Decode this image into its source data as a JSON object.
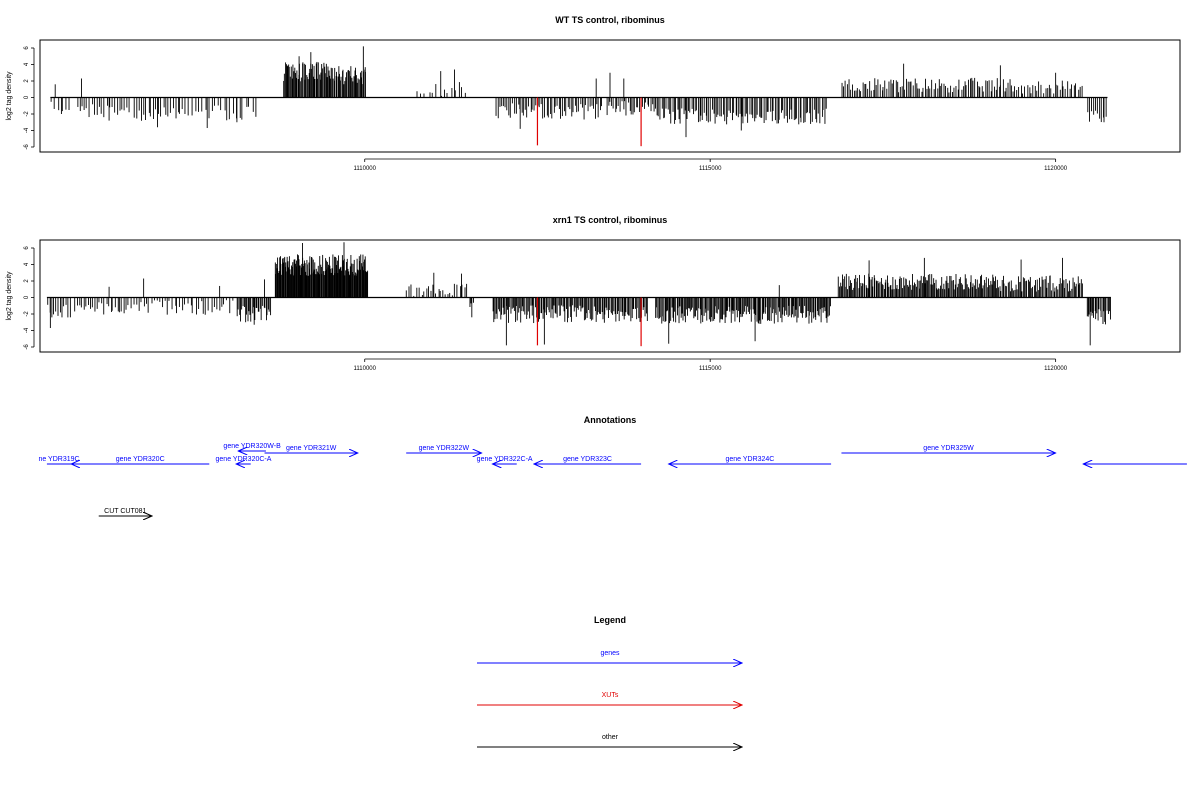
{
  "chart_data": [
    {
      "type": "bar",
      "title": "WT TS control, ribominus",
      "xlabel": "",
      "ylabel": "log2 tag density",
      "xlim": [
        1105300,
        1121800
      ],
      "ylim": [
        -6,
        7
      ],
      "xticks": [
        {
          "value": 1110000,
          "label": "1110000"
        },
        {
          "value": 1115000,
          "label": "1115000"
        },
        {
          "value": 1120000,
          "label": "1120000"
        }
      ],
      "yticks": [
        {
          "value": 6,
          "label": "6"
        },
        {
          "value": 4,
          "label": "4"
        },
        {
          "value": 2,
          "label": "2"
        },
        {
          "value": 0,
          "label": "0"
        },
        {
          "value": -2,
          "label": "-2"
        },
        {
          "value": -4,
          "label": "-4"
        },
        {
          "value": -6,
          "label": "-6"
        }
      ],
      "colors": {
        "bars": "#000000",
        "xut": "#e00000",
        "baseline": "#000000"
      },
      "segments": [
        {
          "start": 1105450,
          "end": 1105750,
          "baseline": -1.0,
          "dev": 0.8,
          "n": 6,
          "spikes": [
            [
              1105520,
              1.6
            ],
            [
              1105610,
              -2.0
            ]
          ]
        },
        {
          "start": 1105820,
          "end": 1106620,
          "baseline": -1.6,
          "dev": 0.9,
          "n": 22,
          "spikes": [
            [
              1105900,
              2.3
            ],
            [
              1106300,
              -2.8
            ]
          ]
        },
        {
          "start": 1106650,
          "end": 1107350,
          "baseline": -1.9,
          "dev": 0.9,
          "n": 20,
          "spikes": [
            [
              1107000,
              -3.6
            ]
          ]
        },
        {
          "start": 1107350,
          "end": 1108450,
          "baseline": -1.7,
          "dev": 1.0,
          "n": 24,
          "spikes": [
            [
              1107720,
              -3.7
            ],
            [
              1108150,
              -3.0
            ]
          ]
        },
        {
          "start": 1108820,
          "end": 1109500,
          "baseline": 3.0,
          "dev": 1.2,
          "n": 55,
          "spikes": [
            [
              1109220,
              5.5
            ],
            [
              1109050,
              5.0
            ]
          ]
        },
        {
          "start": 1109500,
          "end": 1110020,
          "baseline": 2.6,
          "dev": 1.1,
          "n": 40,
          "spikes": [
            [
              1109980,
              6.2
            ],
            [
              1110010,
              3.1
            ]
          ]
        },
        {
          "start": 1110750,
          "end": 1111500,
          "baseline": 0.9,
          "dev": 0.9,
          "n": 14,
          "spikes": [
            [
              1111100,
              3.2
            ],
            [
              1111300,
              3.4
            ]
          ]
        },
        {
          "start": 1111900,
          "end": 1113450,
          "baseline": -1.6,
          "dev": 1.0,
          "n": 60,
          "spikes": [
            [
              1112250,
              -3.8
            ],
            [
              1113350,
              2.3
            ]
          ]
        },
        {
          "start": 1113500,
          "end": 1114200,
          "baseline": -1.2,
          "dev": 0.9,
          "n": 30,
          "spikes": [
            [
              1113550,
              3.0
            ],
            [
              1113750,
              2.3
            ]
          ]
        },
        {
          "start": 1114200,
          "end": 1116700,
          "baseline": -2.2,
          "dev": 1.0,
          "n": 110,
          "spikes": [
            [
              1114650,
              -4.8
            ],
            [
              1115450,
              -4.0
            ]
          ]
        },
        {
          "start": 1116900,
          "end": 1119400,
          "baseline": 1.4,
          "dev": 0.9,
          "n": 100,
          "spikes": [
            [
              1117800,
              4.1
            ],
            [
              1119200,
              3.9
            ]
          ]
        },
        {
          "start": 1119400,
          "end": 1120400,
          "baseline": 1.2,
          "dev": 0.8,
          "n": 34,
          "spikes": [
            [
              1120000,
              3.0
            ]
          ]
        },
        {
          "start": 1120450,
          "end": 1120750,
          "baseline": -2.2,
          "dev": 0.8,
          "n": 10,
          "spikes": [
            [
              1120700,
              -3.0
            ]
          ]
        }
      ],
      "xut_marks": [
        {
          "x": 1112500,
          "y": -5.8
        },
        {
          "x": 1114000,
          "y": -5.9
        }
      ]
    },
    {
      "type": "bar",
      "title": "xrn1 TS control, ribominus",
      "xlabel": "",
      "ylabel": "log2 tag density",
      "xlim": [
        1105300,
        1121800
      ],
      "ylim": [
        -6,
        7
      ],
      "xticks": [
        {
          "value": 1110000,
          "label": "1110000"
        },
        {
          "value": 1115000,
          "label": "1115000"
        },
        {
          "value": 1120000,
          "label": "1120000"
        }
      ],
      "yticks": [
        {
          "value": 6,
          "label": "6"
        },
        {
          "value": 4,
          "label": "4"
        },
        {
          "value": 2,
          "label": "2"
        },
        {
          "value": 0,
          "label": "0"
        },
        {
          "value": -2,
          "label": "-2"
        },
        {
          "value": -4,
          "label": "-4"
        },
        {
          "value": -6,
          "label": "-6"
        }
      ],
      "colors": {
        "bars": "#000000",
        "xut": "#e00000",
        "baseline": "#000000"
      },
      "segments": [
        {
          "start": 1105400,
          "end": 1105750,
          "baseline": -1.6,
          "dev": 0.9,
          "n": 12,
          "spikes": [
            [
              1105450,
              -3.7
            ]
          ]
        },
        {
          "start": 1105800,
          "end": 1106600,
          "baseline": -1.3,
          "dev": 0.8,
          "n": 25,
          "spikes": [
            [
              1106300,
              1.3
            ]
          ]
        },
        {
          "start": 1106600,
          "end": 1108100,
          "baseline": -1.1,
          "dev": 0.9,
          "n": 40,
          "spikes": [
            [
              1106800,
              2.3
            ],
            [
              1107900,
              1.4
            ]
          ]
        },
        {
          "start": 1108150,
          "end": 1108650,
          "baseline": -1.9,
          "dev": 1.0,
          "n": 30,
          "spikes": [
            [
              1108550,
              2.2
            ],
            [
              1108400,
              -3.3
            ]
          ]
        },
        {
          "start": 1108700,
          "end": 1110050,
          "baseline": 3.8,
          "dev": 1.3,
          "n": 150,
          "spikes": [
            [
              1109100,
              6.6
            ],
            [
              1109700,
              6.7
            ]
          ]
        },
        {
          "start": 1110600,
          "end": 1111500,
          "baseline": 0.9,
          "dev": 0.8,
          "n": 26,
          "spikes": [
            [
              1111000,
              3.0
            ],
            [
              1111400,
              2.9
            ]
          ]
        },
        {
          "start": 1111500,
          "end": 1111600,
          "baseline": -1.0,
          "dev": 0.6,
          "n": 3,
          "spikes": [
            [
              1111550,
              -2.4
            ]
          ]
        },
        {
          "start": 1111850,
          "end": 1114100,
          "baseline": -1.9,
          "dev": 1.1,
          "n": 140,
          "spikes": [
            [
              1112050,
              -5.8
            ],
            [
              1112600,
              -5.7
            ]
          ]
        },
        {
          "start": 1114200,
          "end": 1116750,
          "baseline": -2.0,
          "dev": 1.1,
          "n": 170,
          "spikes": [
            [
              1114400,
              -5.6
            ],
            [
              1115650,
              -5.3
            ],
            [
              1116000,
              1.5
            ]
          ]
        },
        {
          "start": 1116850,
          "end": 1119200,
          "baseline": 1.8,
          "dev": 1.0,
          "n": 160,
          "spikes": [
            [
              1117300,
              4.5
            ],
            [
              1118100,
              4.8
            ]
          ]
        },
        {
          "start": 1119200,
          "end": 1120400,
          "baseline": 1.6,
          "dev": 1.0,
          "n": 70,
          "spikes": [
            [
              1120100,
              4.8
            ],
            [
              1119500,
              4.6
            ]
          ]
        },
        {
          "start": 1120450,
          "end": 1120800,
          "baseline": -2.3,
          "dev": 1.0,
          "n": 22,
          "spikes": [
            [
              1120500,
              -5.8
            ]
          ]
        }
      ],
      "xut_marks": [
        {
          "x": 1112500,
          "y": -5.8
        },
        {
          "x": 1114000,
          "y": -5.9
        }
      ]
    }
  ],
  "annotations": {
    "title": "Annotations",
    "colors": {
      "gene": "#0000ff",
      "other": "#000000"
    },
    "genes": [
      {
        "label": "ne YDR319C",
        "start": 1105400,
        "end": 1105750,
        "strand": "none"
      },
      {
        "label": "gene YDR320C",
        "start": 1105750,
        "end": 1107750,
        "strand": "-"
      },
      {
        "label": "gene YDR320W-B",
        "start": 1108170,
        "end": 1108570,
        "strand": "-"
      },
      {
        "label": "gene YDR320C-A",
        "start": 1108140,
        "end": 1108350,
        "strand": "-"
      },
      {
        "label": "gene YDR321W",
        "start": 1108550,
        "end": 1109900,
        "strand": "+"
      },
      {
        "label": "gene YDR322W",
        "start": 1110600,
        "end": 1111690,
        "strand": "+"
      },
      {
        "label": "gene YDR322C-A",
        "start": 1111850,
        "end": 1112200,
        "strand": "-"
      },
      {
        "label": "gene YDR323C",
        "start": 1112450,
        "end": 1114000,
        "strand": "-"
      },
      {
        "label": "gene YDR324C",
        "start": 1114400,
        "end": 1116750,
        "strand": "-"
      },
      {
        "label": "gene YDR325W",
        "start": 1116900,
        "end": 1120000,
        "strand": "+"
      },
      {
        "label": "",
        "start": 1120400,
        "end": 1121900,
        "strand": "-"
      }
    ],
    "others": [
      {
        "label": "CUT CUT081",
        "start": 1106150,
        "end": 1106920,
        "strand": "+"
      }
    ]
  },
  "legend": {
    "title": "Legend",
    "items": [
      {
        "label": "genes",
        "color": "#0000ff"
      },
      {
        "label": "XUTs",
        "color": "#e00000"
      },
      {
        "label": "other",
        "color": "#000000"
      }
    ]
  }
}
